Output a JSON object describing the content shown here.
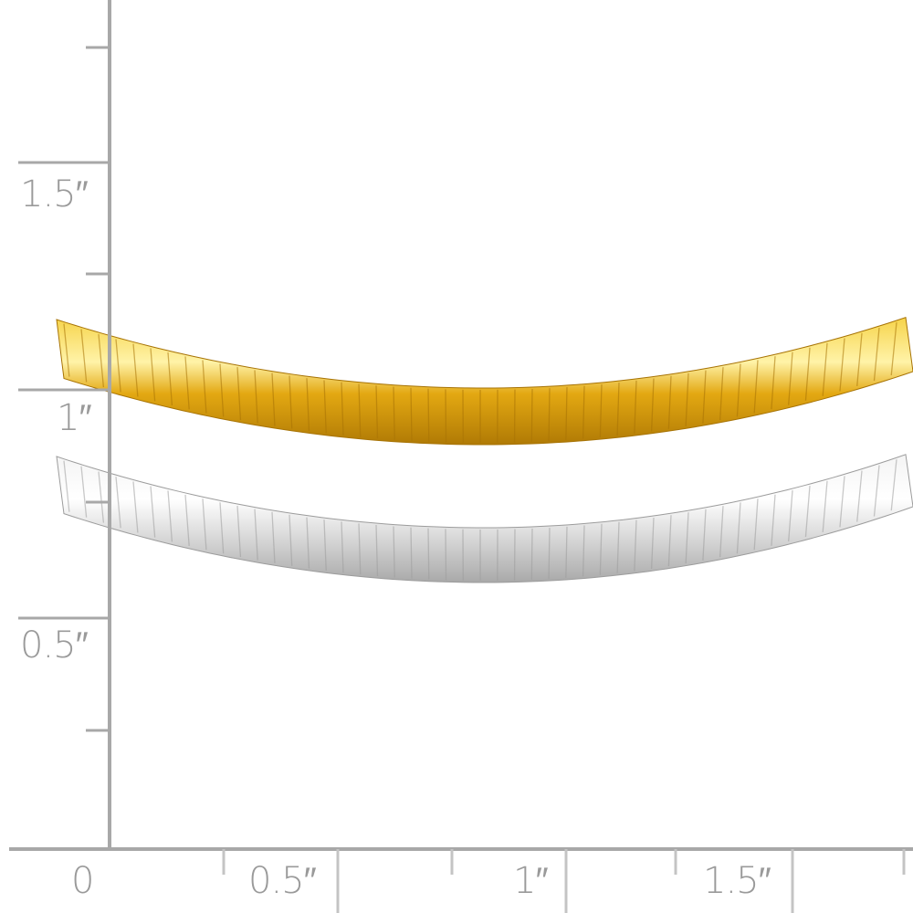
{
  "ruler": {
    "vertical_labels": [
      "1.5″",
      "1″",
      "0.5″"
    ],
    "horizontal_labels": [
      "0",
      "0.5″",
      "1″",
      "1.5″"
    ],
    "color": "#a8a8a8"
  },
  "product": {
    "chains": [
      {
        "metal": "yellow gold",
        "color": "#e8b21a"
      },
      {
        "metal": "white gold",
        "color": "#e6e6e6"
      }
    ]
  }
}
